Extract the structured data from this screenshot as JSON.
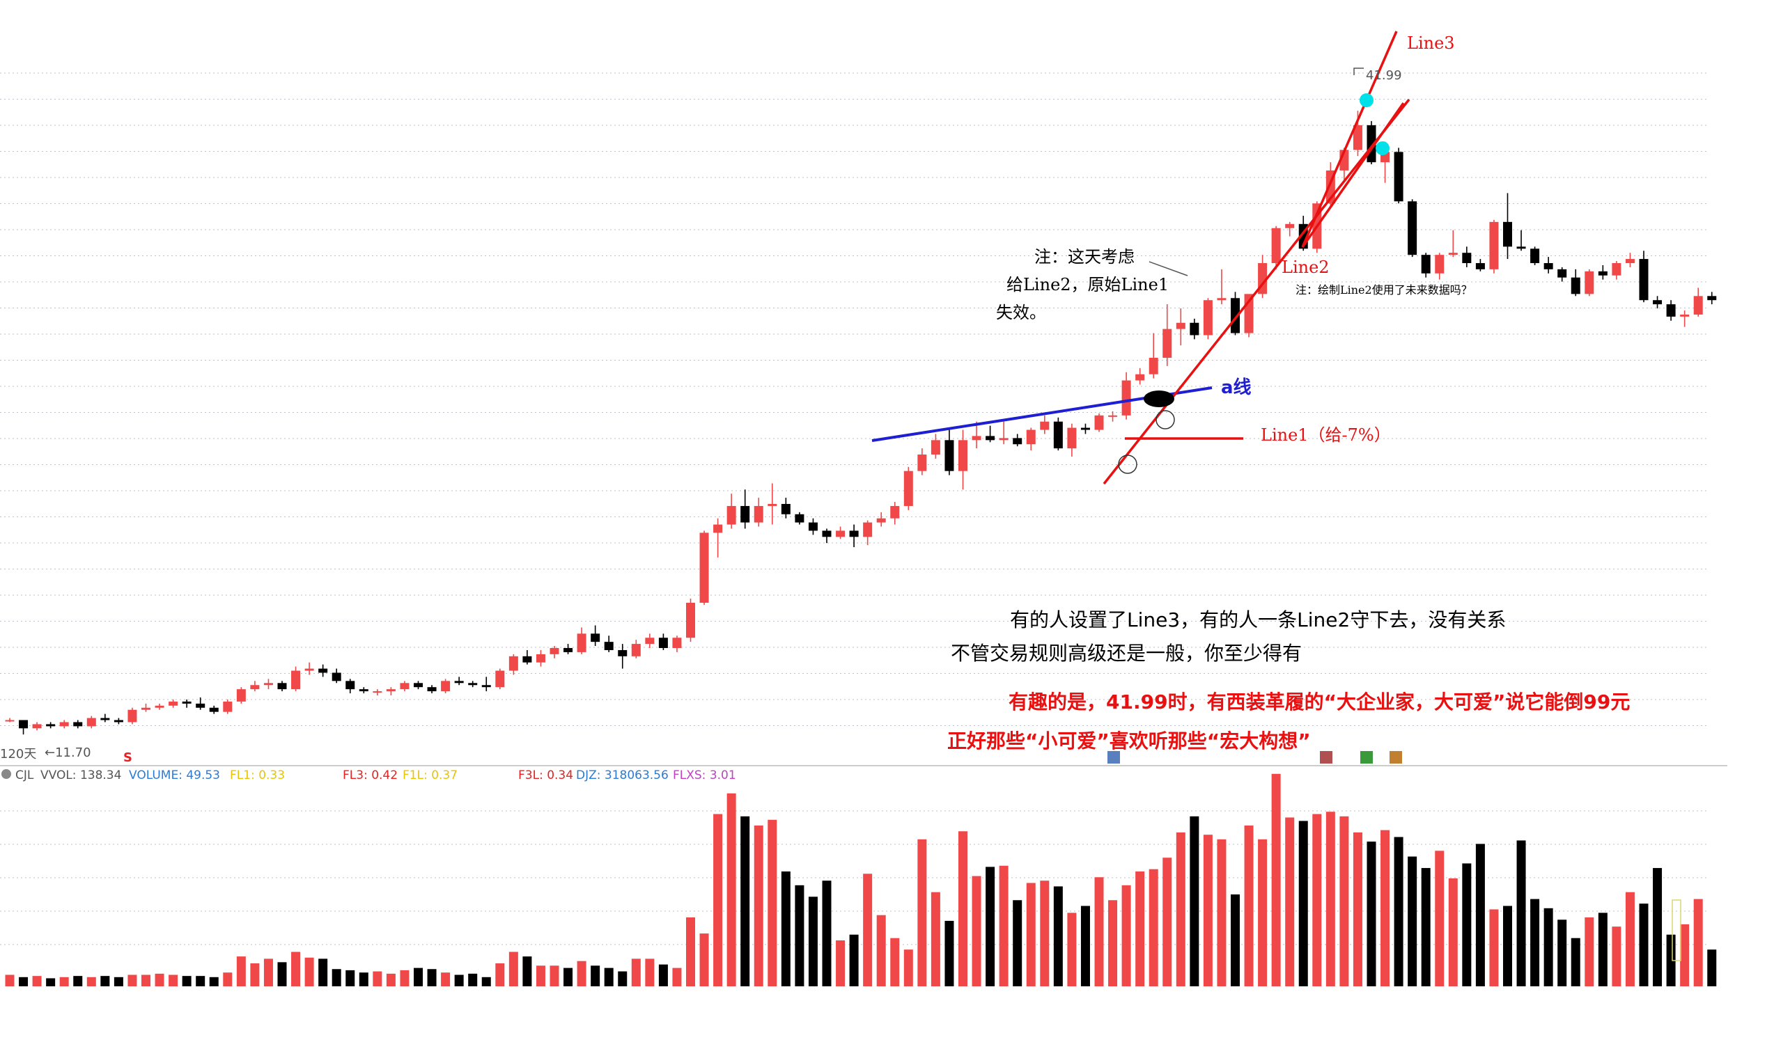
{
  "colors": {
    "up": "#f04848",
    "down": "#000000",
    "a_line": "#1e1ed2",
    "trend": "#e81010",
    "marker": "#00e0e8",
    "grid": "#b9c0c9",
    "ind_blue": "#2b7bd6",
    "ind_yellow": "#e8c400",
    "ind_red": "#e82020",
    "ind_purple": "#c040c0"
  },
  "chart_data": {
    "type": "candlestick",
    "price_range": [
      11.2,
      44
    ],
    "high_label": "41.99",
    "low_label": "←11.70",
    "period_label": "120天",
    "s_marker": "S",
    "candles": [
      [
        12.4,
        12.5,
        12.3,
        12.4
      ],
      [
        12.4,
        12.4,
        11.7,
        12.0
      ],
      [
        12.0,
        12.3,
        11.9,
        12.2
      ],
      [
        12.2,
        12.3,
        12.0,
        12.1
      ],
      [
        12.1,
        12.4,
        12.0,
        12.3
      ],
      [
        12.3,
        12.4,
        12.0,
        12.1
      ],
      [
        12.1,
        12.6,
        12.0,
        12.5
      ],
      [
        12.5,
        12.7,
        12.3,
        12.4
      ],
      [
        12.4,
        12.5,
        12.2,
        12.3
      ],
      [
        12.3,
        13.0,
        12.2,
        12.9
      ],
      [
        12.9,
        13.2,
        12.8,
        13.0
      ],
      [
        13.0,
        13.2,
        12.9,
        13.1
      ],
      [
        13.1,
        13.4,
        13.0,
        13.3
      ],
      [
        13.3,
        13.4,
        13.0,
        13.2
      ],
      [
        13.2,
        13.5,
        12.9,
        13.0
      ],
      [
        13.0,
        13.1,
        12.7,
        12.8
      ],
      [
        12.8,
        13.4,
        12.7,
        13.3
      ],
      [
        13.3,
        14.0,
        13.2,
        13.9
      ],
      [
        13.9,
        14.3,
        13.8,
        14.1
      ],
      [
        14.1,
        14.4,
        13.9,
        14.2
      ],
      [
        14.2,
        14.3,
        13.8,
        13.9
      ],
      [
        13.9,
        15.0,
        13.8,
        14.8
      ],
      [
        14.8,
        15.2,
        14.6,
        14.9
      ],
      [
        14.9,
        15.1,
        14.5,
        14.7
      ],
      [
        14.7,
        14.9,
        14.2,
        14.3
      ],
      [
        14.3,
        14.4,
        13.7,
        13.9
      ],
      [
        13.9,
        14.0,
        13.7,
        13.8
      ],
      [
        13.8,
        13.9,
        13.6,
        13.8
      ],
      [
        13.8,
        14.0,
        13.6,
        13.9
      ],
      [
        13.9,
        14.3,
        13.8,
        14.2
      ],
      [
        14.2,
        14.3,
        13.9,
        14.0
      ],
      [
        14.0,
        14.1,
        13.7,
        13.8
      ],
      [
        13.8,
        14.4,
        13.7,
        14.3
      ],
      [
        14.3,
        14.5,
        14.1,
        14.2
      ],
      [
        14.2,
        14.3,
        14.0,
        14.1
      ],
      [
        14.1,
        14.5,
        13.8,
        14.0
      ],
      [
        14.0,
        14.9,
        13.9,
        14.8
      ],
      [
        14.8,
        15.6,
        14.6,
        15.5
      ],
      [
        15.5,
        15.8,
        15.1,
        15.2
      ],
      [
        15.2,
        15.8,
        15.0,
        15.6
      ],
      [
        15.6,
        16.0,
        15.4,
        15.9
      ],
      [
        15.9,
        16.1,
        15.6,
        15.7
      ],
      [
        15.7,
        16.9,
        15.6,
        16.6
      ],
      [
        16.6,
        17.0,
        16.0,
        16.2
      ],
      [
        16.2,
        16.5,
        15.7,
        15.8
      ],
      [
        15.8,
        16.1,
        14.9,
        15.5
      ],
      [
        15.5,
        16.3,
        15.4,
        16.1
      ],
      [
        16.1,
        16.6,
        15.9,
        16.4
      ],
      [
        16.4,
        16.6,
        15.8,
        15.9
      ],
      [
        15.9,
        16.5,
        15.7,
        16.4
      ],
      [
        16.4,
        18.3,
        16.2,
        18.1
      ],
      [
        18.1,
        21.6,
        18.0,
        21.5
      ],
      [
        21.5,
        22.2,
        20.3,
        21.9
      ],
      [
        21.9,
        23.4,
        21.7,
        22.8
      ],
      [
        22.8,
        23.6,
        21.7,
        22.0
      ],
      [
        22.0,
        23.2,
        21.8,
        22.8
      ],
      [
        22.8,
        23.9,
        21.9,
        22.9
      ],
      [
        22.9,
        23.2,
        22.2,
        22.4
      ],
      [
        22.4,
        22.5,
        21.9,
        22.0
      ],
      [
        22.0,
        22.2,
        21.4,
        21.6
      ],
      [
        21.6,
        21.7,
        21.0,
        21.3
      ],
      [
        21.3,
        21.8,
        21.2,
        21.6
      ],
      [
        21.6,
        21.9,
        20.8,
        21.3
      ],
      [
        21.3,
        22.1,
        20.9,
        22.0
      ],
      [
        22.0,
        22.5,
        21.8,
        22.2
      ],
      [
        22.2,
        23.0,
        21.9,
        22.8
      ],
      [
        22.8,
        24.7,
        22.6,
        24.5
      ],
      [
        24.5,
        25.6,
        24.3,
        25.3
      ],
      [
        25.3,
        26.3,
        25.1,
        26.0
      ],
      [
        26.0,
        26.6,
        24.3,
        24.5
      ],
      [
        24.5,
        26.5,
        23.6,
        26.0
      ],
      [
        26.0,
        26.9,
        25.6,
        26.2
      ],
      [
        26.2,
        26.7,
        25.9,
        26.0
      ],
      [
        26.0,
        26.9,
        25.8,
        26.1
      ],
      [
        26.1,
        26.3,
        25.7,
        25.8
      ],
      [
        25.8,
        26.6,
        25.5,
        26.5
      ],
      [
        26.5,
        27.2,
        26.3,
        26.9
      ],
      [
        26.9,
        27.1,
        25.5,
        25.6
      ],
      [
        25.6,
        26.8,
        25.2,
        26.6
      ],
      [
        26.6,
        26.8,
        26.3,
        26.5
      ],
      [
        26.5,
        27.3,
        26.4,
        27.2
      ],
      [
        27.2,
        27.4,
        26.9,
        27.2
      ],
      [
        27.2,
        29.3,
        27.0,
        28.9
      ],
      [
        28.9,
        29.5,
        28.7,
        29.2
      ],
      [
        29.2,
        31.2,
        29.0,
        30.0
      ],
      [
        30.0,
        32.6,
        29.6,
        31.4
      ],
      [
        31.4,
        32.4,
        30.6,
        31.7
      ],
      [
        31.7,
        31.9,
        30.9,
        31.1
      ],
      [
        31.1,
        32.9,
        30.9,
        32.8
      ],
      [
        32.8,
        34.3,
        32.6,
        32.9
      ],
      [
        32.9,
        33.2,
        31.1,
        31.2
      ],
      [
        31.2,
        33.0,
        31.0,
        33.1
      ],
      [
        33.1,
        35.0,
        32.9,
        34.6
      ],
      [
        34.6,
        36.4,
        34.3,
        36.3
      ],
      [
        36.3,
        36.6,
        35.9,
        36.5
      ],
      [
        36.5,
        36.9,
        35.2,
        35.3
      ],
      [
        35.3,
        37.6,
        35.1,
        37.5
      ],
      [
        37.5,
        39.5,
        37.3,
        39.1
      ],
      [
        39.1,
        40.2,
        38.6,
        40.1
      ],
      [
        40.1,
        42.0,
        39.8,
        41.3
      ],
      [
        41.3,
        41.5,
        39.4,
        39.5
      ],
      [
        39.5,
        40.5,
        38.5,
        40.0
      ],
      [
        40.0,
        40.2,
        37.5,
        37.6
      ],
      [
        37.6,
        37.7,
        34.9,
        35.0
      ],
      [
        35.0,
        35.1,
        33.9,
        34.1
      ],
      [
        34.1,
        35.1,
        33.8,
        35.0
      ],
      [
        35.0,
        36.2,
        34.9,
        35.1
      ],
      [
        35.1,
        35.4,
        34.4,
        34.6
      ],
      [
        34.6,
        34.8,
        34.2,
        34.3
      ],
      [
        34.3,
        36.7,
        34.1,
        36.6
      ],
      [
        36.6,
        38.0,
        34.8,
        35.4
      ],
      [
        35.4,
        36.2,
        35.2,
        35.3
      ],
      [
        35.3,
        35.4,
        34.5,
        34.6
      ],
      [
        34.6,
        34.9,
        34.1,
        34.3
      ],
      [
        34.3,
        34.4,
        33.7,
        33.9
      ],
      [
        33.9,
        34.3,
        33.0,
        33.1
      ],
      [
        33.1,
        34.3,
        33.0,
        34.2
      ],
      [
        34.2,
        34.5,
        33.8,
        34.0
      ],
      [
        34.0,
        34.7,
        33.8,
        34.6
      ],
      [
        34.6,
        35.1,
        34.4,
        34.8
      ],
      [
        34.8,
        35.2,
        32.7,
        32.8
      ],
      [
        32.8,
        33.0,
        32.4,
        32.6
      ],
      [
        32.6,
        32.8,
        31.8,
        32.0
      ],
      [
        32.0,
        32.3,
        31.5,
        32.1
      ],
      [
        32.1,
        33.4,
        32.0,
        33.0
      ],
      [
        33.0,
        33.2,
        32.6,
        32.8
      ]
    ],
    "volume_range": [
      0,
      180
    ],
    "volume": [
      10,
      8,
      9,
      7,
      8,
      9,
      8,
      9,
      8,
      10,
      10,
      11,
      10,
      9,
      9,
      8,
      12,
      26,
      20,
      24,
      21,
      30,
      25,
      24,
      15,
      14,
      12,
      13,
      11,
      14,
      16,
      15,
      12,
      10,
      11,
      8,
      20,
      30,
      26,
      18,
      18,
      16,
      22,
      18,
      16,
      13,
      24,
      24,
      19,
      16,
      60,
      46,
      150,
      168,
      148,
      140,
      145,
      100,
      88,
      78,
      92,
      40,
      45,
      98,
      62,
      42,
      32,
      128,
      82,
      57,
      135,
      96,
      104,
      105,
      75,
      90,
      92,
      87,
      64,
      70,
      95,
      75,
      88,
      100,
      102,
      112,
      134,
      148,
      132,
      128,
      80,
      140,
      128,
      185,
      147,
      144,
      150,
      152,
      148,
      134,
      126,
      136,
      130,
      113,
      103,
      118,
      94,
      107,
      124,
      67,
      70,
      127,
      76,
      68,
      58,
      42,
      60,
      64,
      52,
      82,
      72,
      103,
      45,
      54,
      76,
      32
    ],
    "indicator_panel": {
      "name": "CJL",
      "items": [
        {
          "label": "VVOL: 138.34",
          "color": "#555555"
        },
        {
          "label": "VOLUME: 49.53",
          "color": "#2b7bd6"
        },
        {
          "label": "FL1: 0.33",
          "color": "#e8c400"
        },
        {
          "label": "FL3: 0.42",
          "color": "#e82020"
        },
        {
          "label": "F1L: 0.37",
          "color": "#e8c400"
        },
        {
          "label": "F3L: 0.34",
          "color": "#e82020"
        },
        {
          "label": "DJZ: 318063.56",
          "color": "#2b7bd6"
        },
        {
          "label": "FLXS: 3.01",
          "color": "#c040c0"
        }
      ]
    },
    "lines": {
      "a_line_label": "a线",
      "line1_label": "Line1（给-7%）",
      "line2_label": "Line2",
      "line3_label": "Line3"
    },
    "notes": {
      "note1_l1": "注：这天考虑",
      "note1_l2": "给Line2，原始Line1",
      "note1_l3": "失效。",
      "note2": "注：绘制Line2使用了未来数据吗？",
      "text1": "有的人设置了Line3，有的人一条Line2守下去，没有关系",
      "text2": "不管交易规则高级还是一般，你至少得有",
      "text3": "有趣的是，41.99时，有西装革履的“大企业家，大可爱”说它能倒99元",
      "text4": "正好那些“小可爱”喜欢听那些“宏大构想”"
    }
  }
}
